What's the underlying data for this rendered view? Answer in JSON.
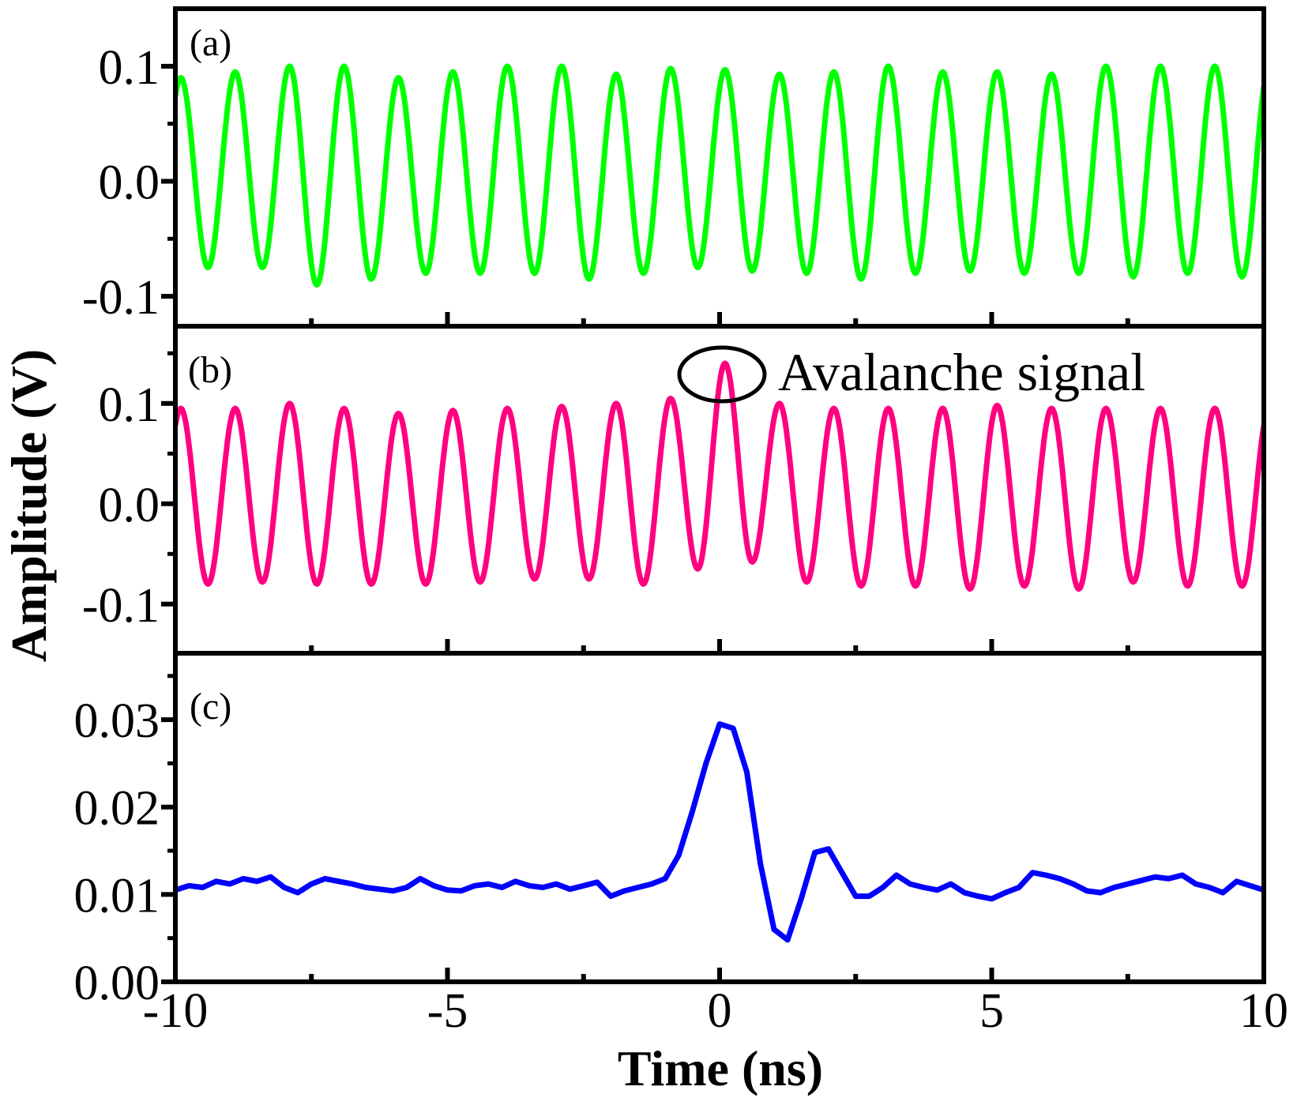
{
  "chart_data": {
    "type": "line",
    "xlabel": "Time (ns)",
    "ylabel": "Amplitude (V)",
    "xlim": [
      -10,
      10
    ],
    "x_ticks": [
      -10,
      -5,
      0,
      5,
      10
    ],
    "x_tick_labels": [
      "-10",
      "-5",
      "0",
      "5",
      "10"
    ],
    "panels": [
      {
        "label": "(a)",
        "color": "#00ff00",
        "ylim": [
          -0.126,
          0.15
        ],
        "y_ticks": [
          0.1,
          0.0,
          -0.1
        ],
        "y_tick_labels": [
          "0.1",
          "0.0",
          "-0.1"
        ],
        "waveform": "sinusoid",
        "period_ns": 1.0,
        "first_peak_ns": -9.9,
        "first_trough_ns": -9.4,
        "peak_values": [
          0.09,
          0.095,
          0.1,
          0.1,
          0.09,
          0.095,
          0.1,
          0.1,
          0.093,
          0.098,
          0.097,
          0.093,
          0.095,
          0.1,
          0.095,
          0.095,
          0.093,
          0.1,
          0.1,
          0.1
        ],
        "trough_values": [
          -0.075,
          -0.075,
          -0.09,
          -0.085,
          -0.08,
          -0.08,
          -0.08,
          -0.085,
          -0.08,
          -0.075,
          -0.078,
          -0.08,
          -0.085,
          -0.08,
          -0.078,
          -0.08,
          -0.08,
          -0.083,
          -0.08,
          -0.083
        ]
      },
      {
        "label": "(b)",
        "color": "#ff0080",
        "ylim": [
          -0.149,
          0.177
        ],
        "y_ticks": [
          0.1,
          0.0,
          -0.1
        ],
        "y_tick_labels": [
          "0.1",
          "0.0",
          "-0.1"
        ],
        "waveform": "sinusoid",
        "period_ns": 1.0,
        "first_peak_ns": -9.9,
        "first_trough_ns": -9.4,
        "peak_values": [
          0.095,
          0.095,
          0.1,
          0.095,
          0.09,
          0.093,
          0.095,
          0.097,
          0.1,
          0.105,
          0.14,
          0.1,
          0.095,
          0.095,
          0.095,
          0.098,
          0.095,
          0.095,
          0.095,
          0.095
        ],
        "trough_values": [
          -0.08,
          -0.078,
          -0.08,
          -0.08,
          -0.08,
          -0.078,
          -0.075,
          -0.075,
          -0.08,
          -0.065,
          -0.058,
          -0.078,
          -0.082,
          -0.082,
          -0.085,
          -0.082,
          -0.085,
          -0.078,
          -0.082,
          -0.082
        ],
        "annotation": {
          "text": "Avalanche signal",
          "x": 0.1,
          "y": 0.14
        }
      },
      {
        "label": "(c)",
        "color": "#0000ff",
        "ylim": [
          0,
          0.0376
        ],
        "y_ticks": [
          0.0,
          0.01,
          0.02,
          0.03
        ],
        "y_tick_labels": [
          "0.00",
          "0.01",
          "0.02",
          "0.03"
        ],
        "x": [
          -10,
          -9.75,
          -9.5,
          -9.25,
          -9,
          -8.75,
          -8.5,
          -8.25,
          -8,
          -7.75,
          -7.5,
          -7.25,
          -7,
          -6.75,
          -6.5,
          -6.25,
          -6,
          -5.75,
          -5.5,
          -5.25,
          -5,
          -4.75,
          -4.5,
          -4.25,
          -4,
          -3.75,
          -3.5,
          -3.25,
          -3,
          -2.75,
          -2.5,
          -2.25,
          -2,
          -1.75,
          -1.5,
          -1.25,
          -1,
          -0.75,
          -0.5,
          -0.25,
          0,
          0.25,
          0.5,
          0.75,
          1,
          1.25,
          1.5,
          1.75,
          2,
          2.25,
          2.5,
          2.75,
          3,
          3.25,
          3.5,
          3.75,
          4,
          4.25,
          4.5,
          4.75,
          5,
          5.25,
          5.5,
          5.75,
          6,
          6.25,
          6.5,
          6.75,
          7,
          7.25,
          7.5,
          7.75,
          8,
          8.25,
          8.5,
          8.75,
          9,
          9.25,
          9.5,
          9.75,
          10
        ],
        "y": [
          0.0105,
          0.011,
          0.0108,
          0.0115,
          0.0112,
          0.0118,
          0.0115,
          0.012,
          0.0108,
          0.0102,
          0.0112,
          0.0118,
          0.0115,
          0.0112,
          0.0108,
          0.0106,
          0.0104,
          0.0108,
          0.0118,
          0.011,
          0.0105,
          0.0104,
          0.011,
          0.0112,
          0.0108,
          0.0115,
          0.011,
          0.0108,
          0.0112,
          0.0106,
          0.011,
          0.0114,
          0.0098,
          0.0104,
          0.0108,
          0.0112,
          0.0118,
          0.0145,
          0.0195,
          0.025,
          0.0295,
          0.029,
          0.024,
          0.0135,
          0.006,
          0.0048,
          0.0095,
          0.0148,
          0.0152,
          0.0125,
          0.0098,
          0.0098,
          0.0108,
          0.0122,
          0.0112,
          0.0108,
          0.0105,
          0.0112,
          0.0102,
          0.0098,
          0.0095,
          0.0102,
          0.0108,
          0.0125,
          0.0122,
          0.0118,
          0.0112,
          0.0104,
          0.0102,
          0.0108,
          0.0112,
          0.0116,
          0.012,
          0.0118,
          0.0122,
          0.0112,
          0.0108,
          0.0102,
          0.0115,
          0.011,
          0.0105
        ]
      }
    ]
  }
}
